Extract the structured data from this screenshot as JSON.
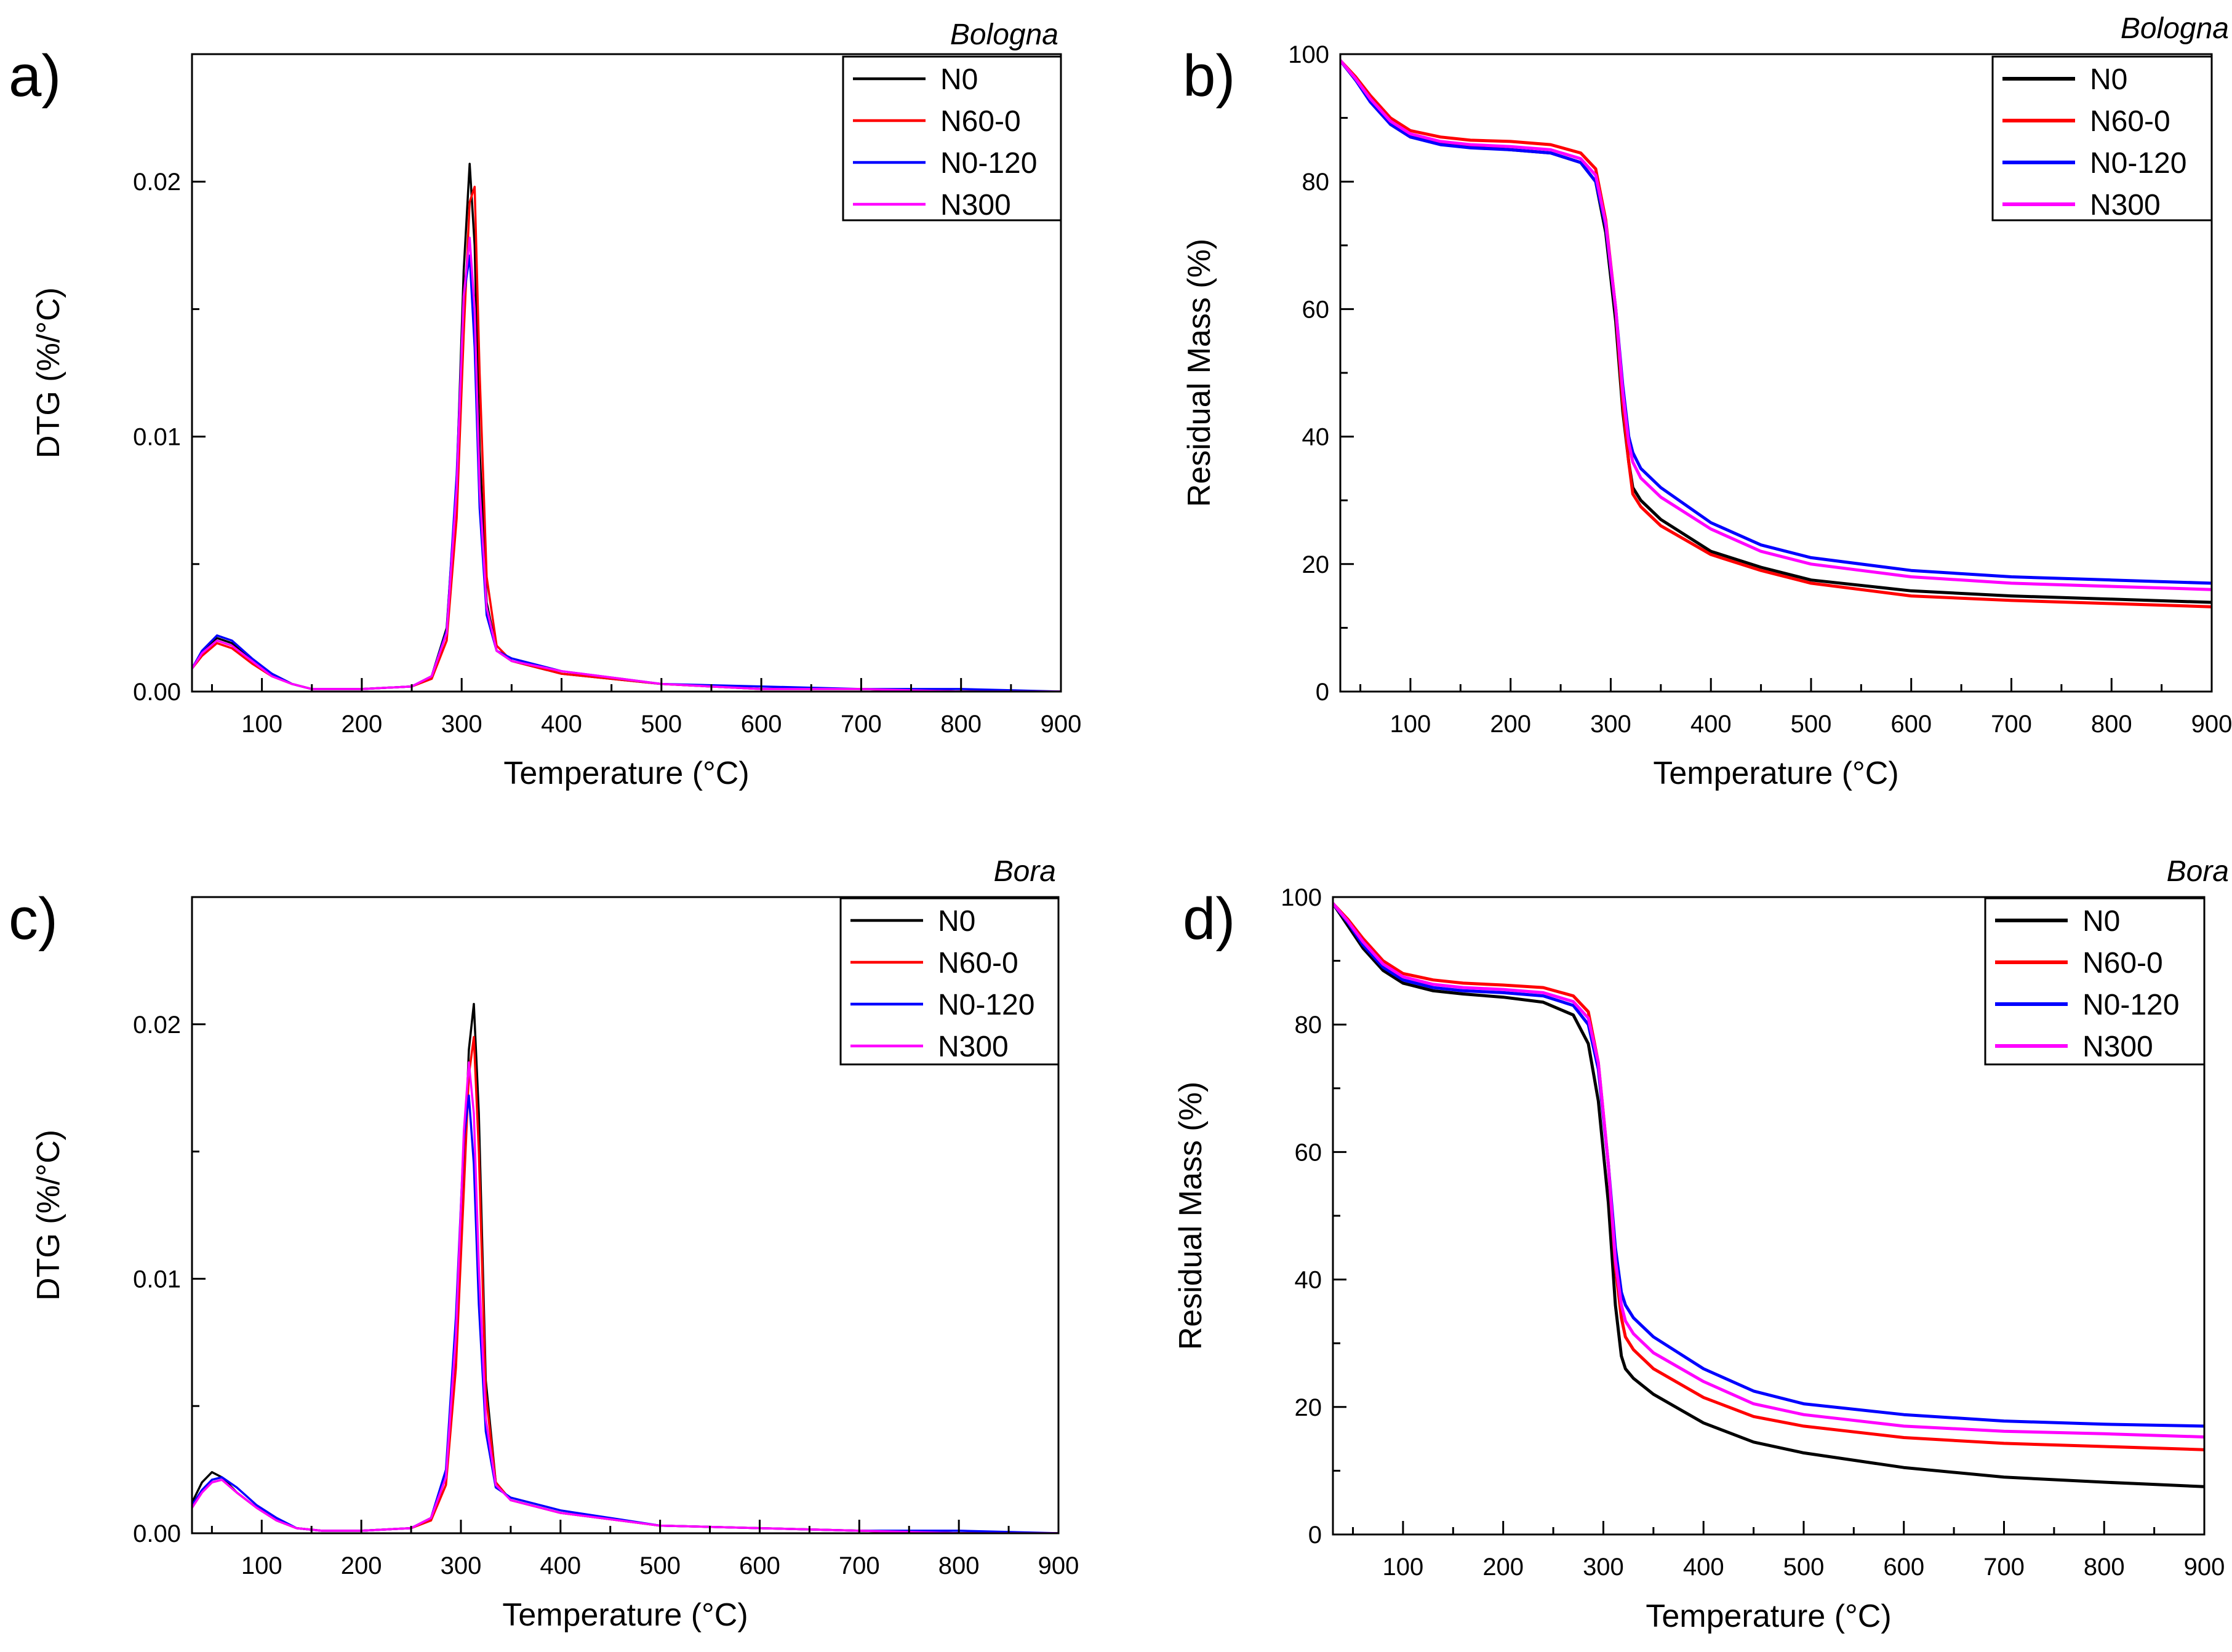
{
  "figure": {
    "series_colors": {
      "N0": "#000000",
      "N60-0": "#ff0000",
      "N0-120": "#0000ff",
      "N300": "#ff00ff"
    }
  },
  "chart_data": [
    {
      "panel": "a)",
      "site": "Bologna",
      "type": "line",
      "xlabel": "Temperature (°C)",
      "ylabel": "DTG (%/°C)",
      "xlim": [
        30,
        900
      ],
      "ylim": [
        0,
        0.025
      ],
      "xticks": [
        100,
        200,
        300,
        400,
        500,
        600,
        700,
        800,
        900
      ],
      "xtick_labels": [
        "100",
        "200",
        "300",
        "400",
        "500",
        "600",
        "700",
        "800",
        "900"
      ],
      "yticks": [
        0,
        0.01,
        0.02
      ],
      "ytick_labels": [
        "0.00",
        "0.01",
        "0.02"
      ],
      "legend": [
        "N0",
        "N60-0",
        "N0-120",
        "N300"
      ],
      "legend_position": "top-right",
      "series": [
        {
          "name": "N0",
          "x": [
            30,
            40,
            55,
            70,
            90,
            110,
            130,
            150,
            200,
            250,
            270,
            285,
            295,
            302,
            308,
            313,
            318,
            325,
            335,
            350,
            400,
            500,
            600,
            700,
            800,
            900
          ],
          "y": [
            0.0009,
            0.0015,
            0.0021,
            0.0019,
            0.0012,
            0.0007,
            0.0003,
            0.0001,
            0.0001,
            0.0002,
            0.0006,
            0.0025,
            0.0082,
            0.0165,
            0.0207,
            0.0175,
            0.0095,
            0.0035,
            0.0016,
            0.0012,
            0.0007,
            0.0003,
            0.0001,
            0.0001,
            0,
            0
          ]
        },
        {
          "name": "N60-0",
          "x": [
            30,
            40,
            55,
            70,
            90,
            110,
            130,
            150,
            200,
            250,
            270,
            285,
            295,
            302,
            308,
            313,
            318,
            325,
            335,
            350,
            400,
            500,
            600,
            700,
            800,
            900
          ],
          "y": [
            0.0009,
            0.0014,
            0.0019,
            0.0017,
            0.0011,
            0.0006,
            0.0003,
            0.0001,
            0.0001,
            0.0002,
            0.0005,
            0.002,
            0.0068,
            0.014,
            0.0192,
            0.0198,
            0.0125,
            0.0045,
            0.0018,
            0.0012,
            0.0007,
            0.0003,
            0.0001,
            0.0001,
            0,
            0
          ]
        },
        {
          "name": "N0-120",
          "x": [
            30,
            40,
            55,
            70,
            90,
            110,
            130,
            150,
            200,
            250,
            270,
            285,
            295,
            302,
            308,
            313,
            318,
            325,
            335,
            350,
            400,
            500,
            600,
            700,
            800,
            900
          ],
          "y": [
            0.0009,
            0.0016,
            0.0022,
            0.002,
            0.0013,
            0.0007,
            0.0003,
            0.0001,
            0.0001,
            0.0002,
            0.0006,
            0.0024,
            0.0085,
            0.0155,
            0.0171,
            0.0135,
            0.0072,
            0.003,
            0.0016,
            0.0013,
            0.0008,
            0.0003,
            0.0002,
            0.0001,
            0.0001,
            0
          ]
        },
        {
          "name": "N300",
          "x": [
            30,
            40,
            55,
            70,
            90,
            110,
            130,
            150,
            200,
            250,
            270,
            285,
            295,
            302,
            308,
            313,
            318,
            325,
            335,
            350,
            400,
            500,
            600,
            700,
            800,
            900
          ],
          "y": [
            0.0009,
            0.0015,
            0.002,
            0.0018,
            0.0012,
            0.0006,
            0.0003,
            0.0001,
            0.0001,
            0.0002,
            0.0006,
            0.0023,
            0.008,
            0.0155,
            0.0178,
            0.015,
            0.008,
            0.0033,
            0.0016,
            0.0012,
            0.0008,
            0.0003,
            0.0001,
            0.0001,
            0,
            0
          ]
        }
      ]
    },
    {
      "panel": "b)",
      "site": "Bologna",
      "type": "line",
      "xlabel": "Temperature (°C)",
      "ylabel": "Residual Mass (%)",
      "xlim": [
        30,
        900
      ],
      "ylim": [
        0,
        100
      ],
      "xticks": [
        100,
        200,
        300,
        400,
        500,
        600,
        700,
        800,
        900
      ],
      "xtick_labels": [
        "100",
        "200",
        "300",
        "400",
        "500",
        "600",
        "700",
        "800",
        "900"
      ],
      "yticks": [
        0,
        20,
        40,
        60,
        80,
        100
      ],
      "ytick_labels": [
        "0",
        "20",
        "40",
        "60",
        "80",
        "100"
      ],
      "legend": [
        "N0",
        "N60-0",
        "N0-120",
        "N300"
      ],
      "legend_position": "top-right",
      "series": [
        {
          "name": "N0",
          "x": [
            30,
            45,
            60,
            80,
            100,
            130,
            160,
            200,
            240,
            270,
            285,
            295,
            305,
            312,
            318,
            322,
            330,
            350,
            400,
            450,
            500,
            600,
            700,
            800,
            900
          ],
          "y": [
            99,
            96,
            93,
            89,
            87,
            86,
            85.5,
            85,
            84.5,
            83,
            80,
            72,
            58,
            44,
            36,
            32,
            30,
            27,
            22,
            19.5,
            17.5,
            15.8,
            15,
            14.5,
            14
          ]
        },
        {
          "name": "N60-0",
          "x": [
            30,
            45,
            60,
            80,
            100,
            130,
            160,
            200,
            240,
            270,
            285,
            295,
            305,
            312,
            318,
            322,
            330,
            350,
            400,
            450,
            500,
            600,
            700,
            800,
            900
          ],
          "y": [
            99,
            96.5,
            93.5,
            90,
            88,
            87,
            86.5,
            86.3,
            85.8,
            84.5,
            82,
            74,
            60,
            45,
            36,
            31,
            29,
            26,
            21.5,
            19,
            17,
            15,
            14.3,
            13.8,
            13.3
          ]
        },
        {
          "name": "N0-120",
          "x": [
            30,
            45,
            60,
            80,
            100,
            130,
            160,
            200,
            240,
            270,
            285,
            295,
            305,
            312,
            318,
            322,
            330,
            350,
            400,
            450,
            500,
            600,
            700,
            800,
            900
          ],
          "y": [
            99,
            96,
            92.5,
            89,
            87,
            85.8,
            85.3,
            85,
            84.5,
            83,
            80,
            73,
            60,
            48,
            40,
            37.5,
            35,
            32,
            26.5,
            23,
            21,
            19,
            18,
            17.5,
            17
          ]
        },
        {
          "name": "N300",
          "x": [
            30,
            45,
            60,
            80,
            100,
            130,
            160,
            200,
            240,
            270,
            285,
            295,
            305,
            312,
            318,
            322,
            330,
            350,
            400,
            450,
            500,
            600,
            700,
            800,
            900
          ],
          "y": [
            99,
            96.2,
            93,
            89.5,
            87.5,
            86.3,
            85.8,
            85.5,
            85,
            83.6,
            81,
            73.5,
            60,
            47,
            39,
            36,
            33.5,
            30.5,
            25.5,
            22,
            20,
            18,
            17,
            16.5,
            16
          ]
        }
      ]
    },
    {
      "panel": "c)",
      "site": "Bora",
      "type": "line",
      "xlabel": "Temperature (°C)",
      "ylabel": "DTG (%/°C)",
      "xlim": [
        30,
        900
      ],
      "ylim": [
        0,
        0.025
      ],
      "xticks": [
        100,
        200,
        300,
        400,
        500,
        600,
        700,
        800,
        900
      ],
      "xtick_labels": [
        "100",
        "200",
        "300",
        "400",
        "500",
        "600",
        "700",
        "800",
        "900"
      ],
      "yticks": [
        0,
        0.01,
        0.02
      ],
      "ytick_labels": [
        "0.00",
        "0.01",
        "0.02"
      ],
      "legend": [
        "N0",
        "N60-0",
        "N0-120",
        "N300"
      ],
      "legend_position": "top-right",
      "series": [
        {
          "name": "N0",
          "x": [
            30,
            40,
            50,
            60,
            75,
            95,
            115,
            135,
            160,
            200,
            250,
            270,
            285,
            295,
            303,
            308,
            313,
            318,
            325,
            335,
            350,
            400,
            500,
            600,
            700,
            800,
            900
          ],
          "y": [
            0.0012,
            0.002,
            0.0024,
            0.0022,
            0.0016,
            0.001,
            0.0005,
            0.0002,
            0.0001,
            0.0001,
            0.0002,
            0.0006,
            0.0022,
            0.007,
            0.014,
            0.019,
            0.0208,
            0.0165,
            0.006,
            0.002,
            0.0013,
            0.0008,
            0.0003,
            0.0002,
            0.0001,
            0,
            0
          ]
        },
        {
          "name": "N60-0",
          "x": [
            30,
            40,
            50,
            60,
            75,
            95,
            115,
            135,
            160,
            200,
            250,
            270,
            285,
            295,
            303,
            308,
            313,
            318,
            325,
            335,
            350,
            400,
            500,
            600,
            700,
            800,
            900
          ],
          "y": [
            0.001,
            0.0016,
            0.002,
            0.0021,
            0.0016,
            0.001,
            0.0005,
            0.0002,
            0.0001,
            0.0001,
            0.0002,
            0.0005,
            0.0019,
            0.0065,
            0.0135,
            0.018,
            0.0195,
            0.015,
            0.0055,
            0.002,
            0.0013,
            0.0008,
            0.0003,
            0.0002,
            0.0001,
            0,
            0
          ]
        },
        {
          "name": "N0-120",
          "x": [
            30,
            40,
            50,
            60,
            75,
            95,
            115,
            135,
            160,
            200,
            250,
            270,
            285,
            295,
            303,
            308,
            313,
            318,
            325,
            335,
            350,
            400,
            500,
            600,
            700,
            800,
            900
          ],
          "y": [
            0.0011,
            0.0017,
            0.0021,
            0.0022,
            0.0018,
            0.0011,
            0.0006,
            0.0002,
            0.0001,
            0.0001,
            0.0002,
            0.0006,
            0.0025,
            0.0085,
            0.0155,
            0.0172,
            0.0145,
            0.009,
            0.004,
            0.0018,
            0.0014,
            0.0009,
            0.0003,
            0.0002,
            0.0001,
            0.0001,
            0
          ]
        },
        {
          "name": "N300",
          "x": [
            30,
            40,
            50,
            60,
            75,
            95,
            115,
            135,
            160,
            200,
            250,
            270,
            285,
            295,
            303,
            308,
            313,
            318,
            325,
            335,
            350,
            400,
            500,
            600,
            700,
            800,
            900
          ],
          "y": [
            0.001,
            0.0016,
            0.002,
            0.0021,
            0.0016,
            0.001,
            0.0005,
            0.0002,
            0.0001,
            0.0001,
            0.0002,
            0.0006,
            0.0022,
            0.0078,
            0.0158,
            0.0185,
            0.0165,
            0.0105,
            0.0045,
            0.0019,
            0.0013,
            0.0008,
            0.0003,
            0.0002,
            0.0001,
            0,
            0
          ]
        }
      ]
    },
    {
      "panel": "d)",
      "site": "Bora",
      "type": "line",
      "xlabel": "Temperature (°C)",
      "ylabel": "Residual Mass (%)",
      "xlim": [
        30,
        900
      ],
      "ylim": [
        0,
        100
      ],
      "xticks": [
        100,
        200,
        300,
        400,
        500,
        600,
        700,
        800,
        900
      ],
      "xtick_labels": [
        "100",
        "200",
        "300",
        "400",
        "500",
        "600",
        "700",
        "800",
        "900"
      ],
      "yticks": [
        0,
        20,
        40,
        60,
        80,
        100
      ],
      "ytick_labels": [
        "0",
        "20",
        "40",
        "60",
        "80",
        "100"
      ],
      "legend": [
        "N0",
        "N60-0",
        "N0-120",
        "N300"
      ],
      "legend_position": "top-right",
      "series": [
        {
          "name": "N0",
          "x": [
            30,
            45,
            60,
            80,
            100,
            130,
            160,
            200,
            240,
            270,
            285,
            295,
            305,
            312,
            318,
            322,
            330,
            350,
            400,
            450,
            500,
            600,
            700,
            800,
            900
          ],
          "y": [
            99,
            95.5,
            92,
            88.5,
            86.5,
            85.3,
            84.8,
            84.3,
            83.5,
            81.5,
            77,
            68,
            52,
            36,
            28,
            26,
            24.5,
            22,
            17.5,
            14.5,
            12.8,
            10.5,
            9,
            8.2,
            7.5
          ]
        },
        {
          "name": "N60-0",
          "x": [
            30,
            45,
            60,
            80,
            100,
            130,
            160,
            200,
            240,
            270,
            285,
            295,
            305,
            312,
            318,
            322,
            330,
            350,
            400,
            450,
            500,
            600,
            700,
            800,
            900
          ],
          "y": [
            99,
            96.5,
            93.5,
            90,
            88,
            87,
            86.5,
            86.2,
            85.8,
            84.5,
            82,
            74,
            58,
            42,
            34,
            31,
            29,
            26,
            21.5,
            18.5,
            17,
            15.2,
            14.3,
            13.8,
            13.3
          ]
        },
        {
          "name": "N0-120",
          "x": [
            30,
            45,
            60,
            80,
            100,
            130,
            160,
            200,
            240,
            270,
            285,
            295,
            305,
            312,
            318,
            322,
            330,
            350,
            400,
            450,
            500,
            600,
            700,
            800,
            900
          ],
          "y": [
            99,
            96,
            92.5,
            89,
            87,
            85.8,
            85.3,
            85,
            84.5,
            83,
            80,
            73,
            58,
            45,
            38,
            36,
            34,
            31,
            26,
            22.5,
            20.5,
            18.8,
            17.8,
            17.3,
            17
          ]
        },
        {
          "name": "N300",
          "x": [
            30,
            45,
            60,
            80,
            100,
            130,
            160,
            200,
            240,
            270,
            285,
            295,
            305,
            312,
            318,
            322,
            330,
            350,
            400,
            450,
            500,
            600,
            700,
            800,
            900
          ],
          "y": [
            99,
            96.2,
            93,
            89.5,
            87.5,
            86.3,
            85.8,
            85.5,
            85,
            83.6,
            81,
            74,
            58,
            43,
            36,
            33.5,
            31.5,
            28.5,
            24,
            20.5,
            18.8,
            17,
            16.2,
            15.8,
            15.3
          ]
        }
      ]
    }
  ]
}
